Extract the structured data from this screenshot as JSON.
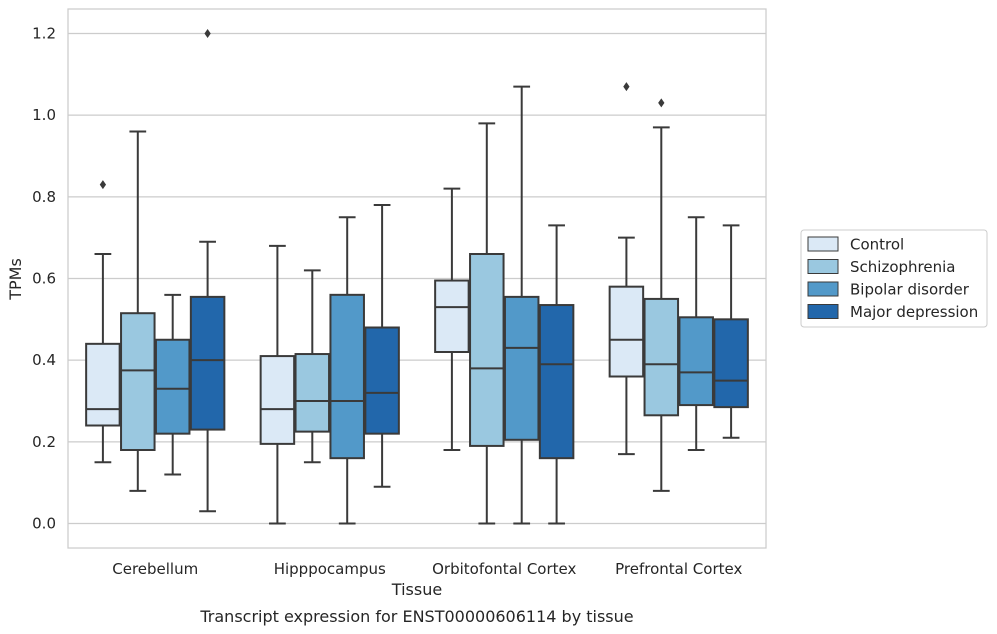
{
  "chart_data": {
    "type": "box",
    "caption": "Transcript expression for ENST00000606114 by tissue",
    "xlabel": "Tissue",
    "ylabel": "TPMs",
    "ylim": [
      -0.06,
      1.26
    ],
    "yticks": [
      "0.0",
      "0.2",
      "0.4",
      "0.6",
      "0.8",
      "1.0",
      "1.2"
    ],
    "ytick_values": [
      0.0,
      0.2,
      0.4,
      0.6,
      0.8,
      1.0,
      1.2
    ],
    "grid": "horizontal",
    "legend_position": "right",
    "categories": [
      "Cerebellum",
      "Hipppocampus",
      "Orbitofontal Cortex",
      "Prefrontal Cortex"
    ],
    "series": [
      {
        "name": "Control",
        "color": "#dbe9f6",
        "boxes": [
          {
            "whislo": 0.15,
            "q1": 0.24,
            "med": 0.28,
            "q3": 0.44,
            "whishi": 0.66,
            "fliers": [
              0.83
            ]
          },
          {
            "whislo": 0.0,
            "q1": 0.195,
            "med": 0.28,
            "q3": 0.41,
            "whishi": 0.68,
            "fliers": []
          },
          {
            "whislo": 0.18,
            "q1": 0.42,
            "med": 0.53,
            "q3": 0.595,
            "whishi": 0.82,
            "fliers": []
          },
          {
            "whislo": 0.17,
            "q1": 0.36,
            "med": 0.45,
            "q3": 0.58,
            "whishi": 0.7,
            "fliers": [
              1.07
            ]
          }
        ]
      },
      {
        "name": "Schizophrenia",
        "color": "#9ac8e0",
        "boxes": [
          {
            "whislo": 0.08,
            "q1": 0.18,
            "med": 0.375,
            "q3": 0.515,
            "whishi": 0.96,
            "fliers": []
          },
          {
            "whislo": 0.15,
            "q1": 0.225,
            "med": 0.3,
            "q3": 0.415,
            "whishi": 0.62,
            "fliers": []
          },
          {
            "whislo": 0.0,
            "q1": 0.19,
            "med": 0.38,
            "q3": 0.66,
            "whishi": 0.98,
            "fliers": []
          },
          {
            "whislo": 0.08,
            "q1": 0.265,
            "med": 0.39,
            "q3": 0.55,
            "whishi": 0.97,
            "fliers": [
              1.03
            ]
          }
        ]
      },
      {
        "name": "Bipolar disorder",
        "color": "#5299c9",
        "boxes": [
          {
            "whislo": 0.12,
            "q1": 0.22,
            "med": 0.33,
            "q3": 0.45,
            "whishi": 0.56,
            "fliers": []
          },
          {
            "whislo": 0.0,
            "q1": 0.16,
            "med": 0.3,
            "q3": 0.56,
            "whishi": 0.75,
            "fliers": []
          },
          {
            "whislo": 0.0,
            "q1": 0.205,
            "med": 0.43,
            "q3": 0.555,
            "whishi": 1.07,
            "fliers": []
          },
          {
            "whislo": 0.18,
            "q1": 0.29,
            "med": 0.37,
            "q3": 0.505,
            "whishi": 0.75,
            "fliers": []
          }
        ]
      },
      {
        "name": "Major depression",
        "color": "#2267ab",
        "boxes": [
          {
            "whislo": 0.03,
            "q1": 0.23,
            "med": 0.4,
            "q3": 0.555,
            "whishi": 0.69,
            "fliers": [
              1.2
            ]
          },
          {
            "whislo": 0.09,
            "q1": 0.22,
            "med": 0.32,
            "q3": 0.48,
            "whishi": 0.78,
            "fliers": []
          },
          {
            "whislo": 0.0,
            "q1": 0.16,
            "med": 0.39,
            "q3": 0.535,
            "whishi": 0.73,
            "fliers": []
          },
          {
            "whislo": 0.21,
            "q1": 0.285,
            "med": 0.35,
            "q3": 0.5,
            "whishi": 0.73,
            "fliers": []
          }
        ]
      }
    ]
  }
}
